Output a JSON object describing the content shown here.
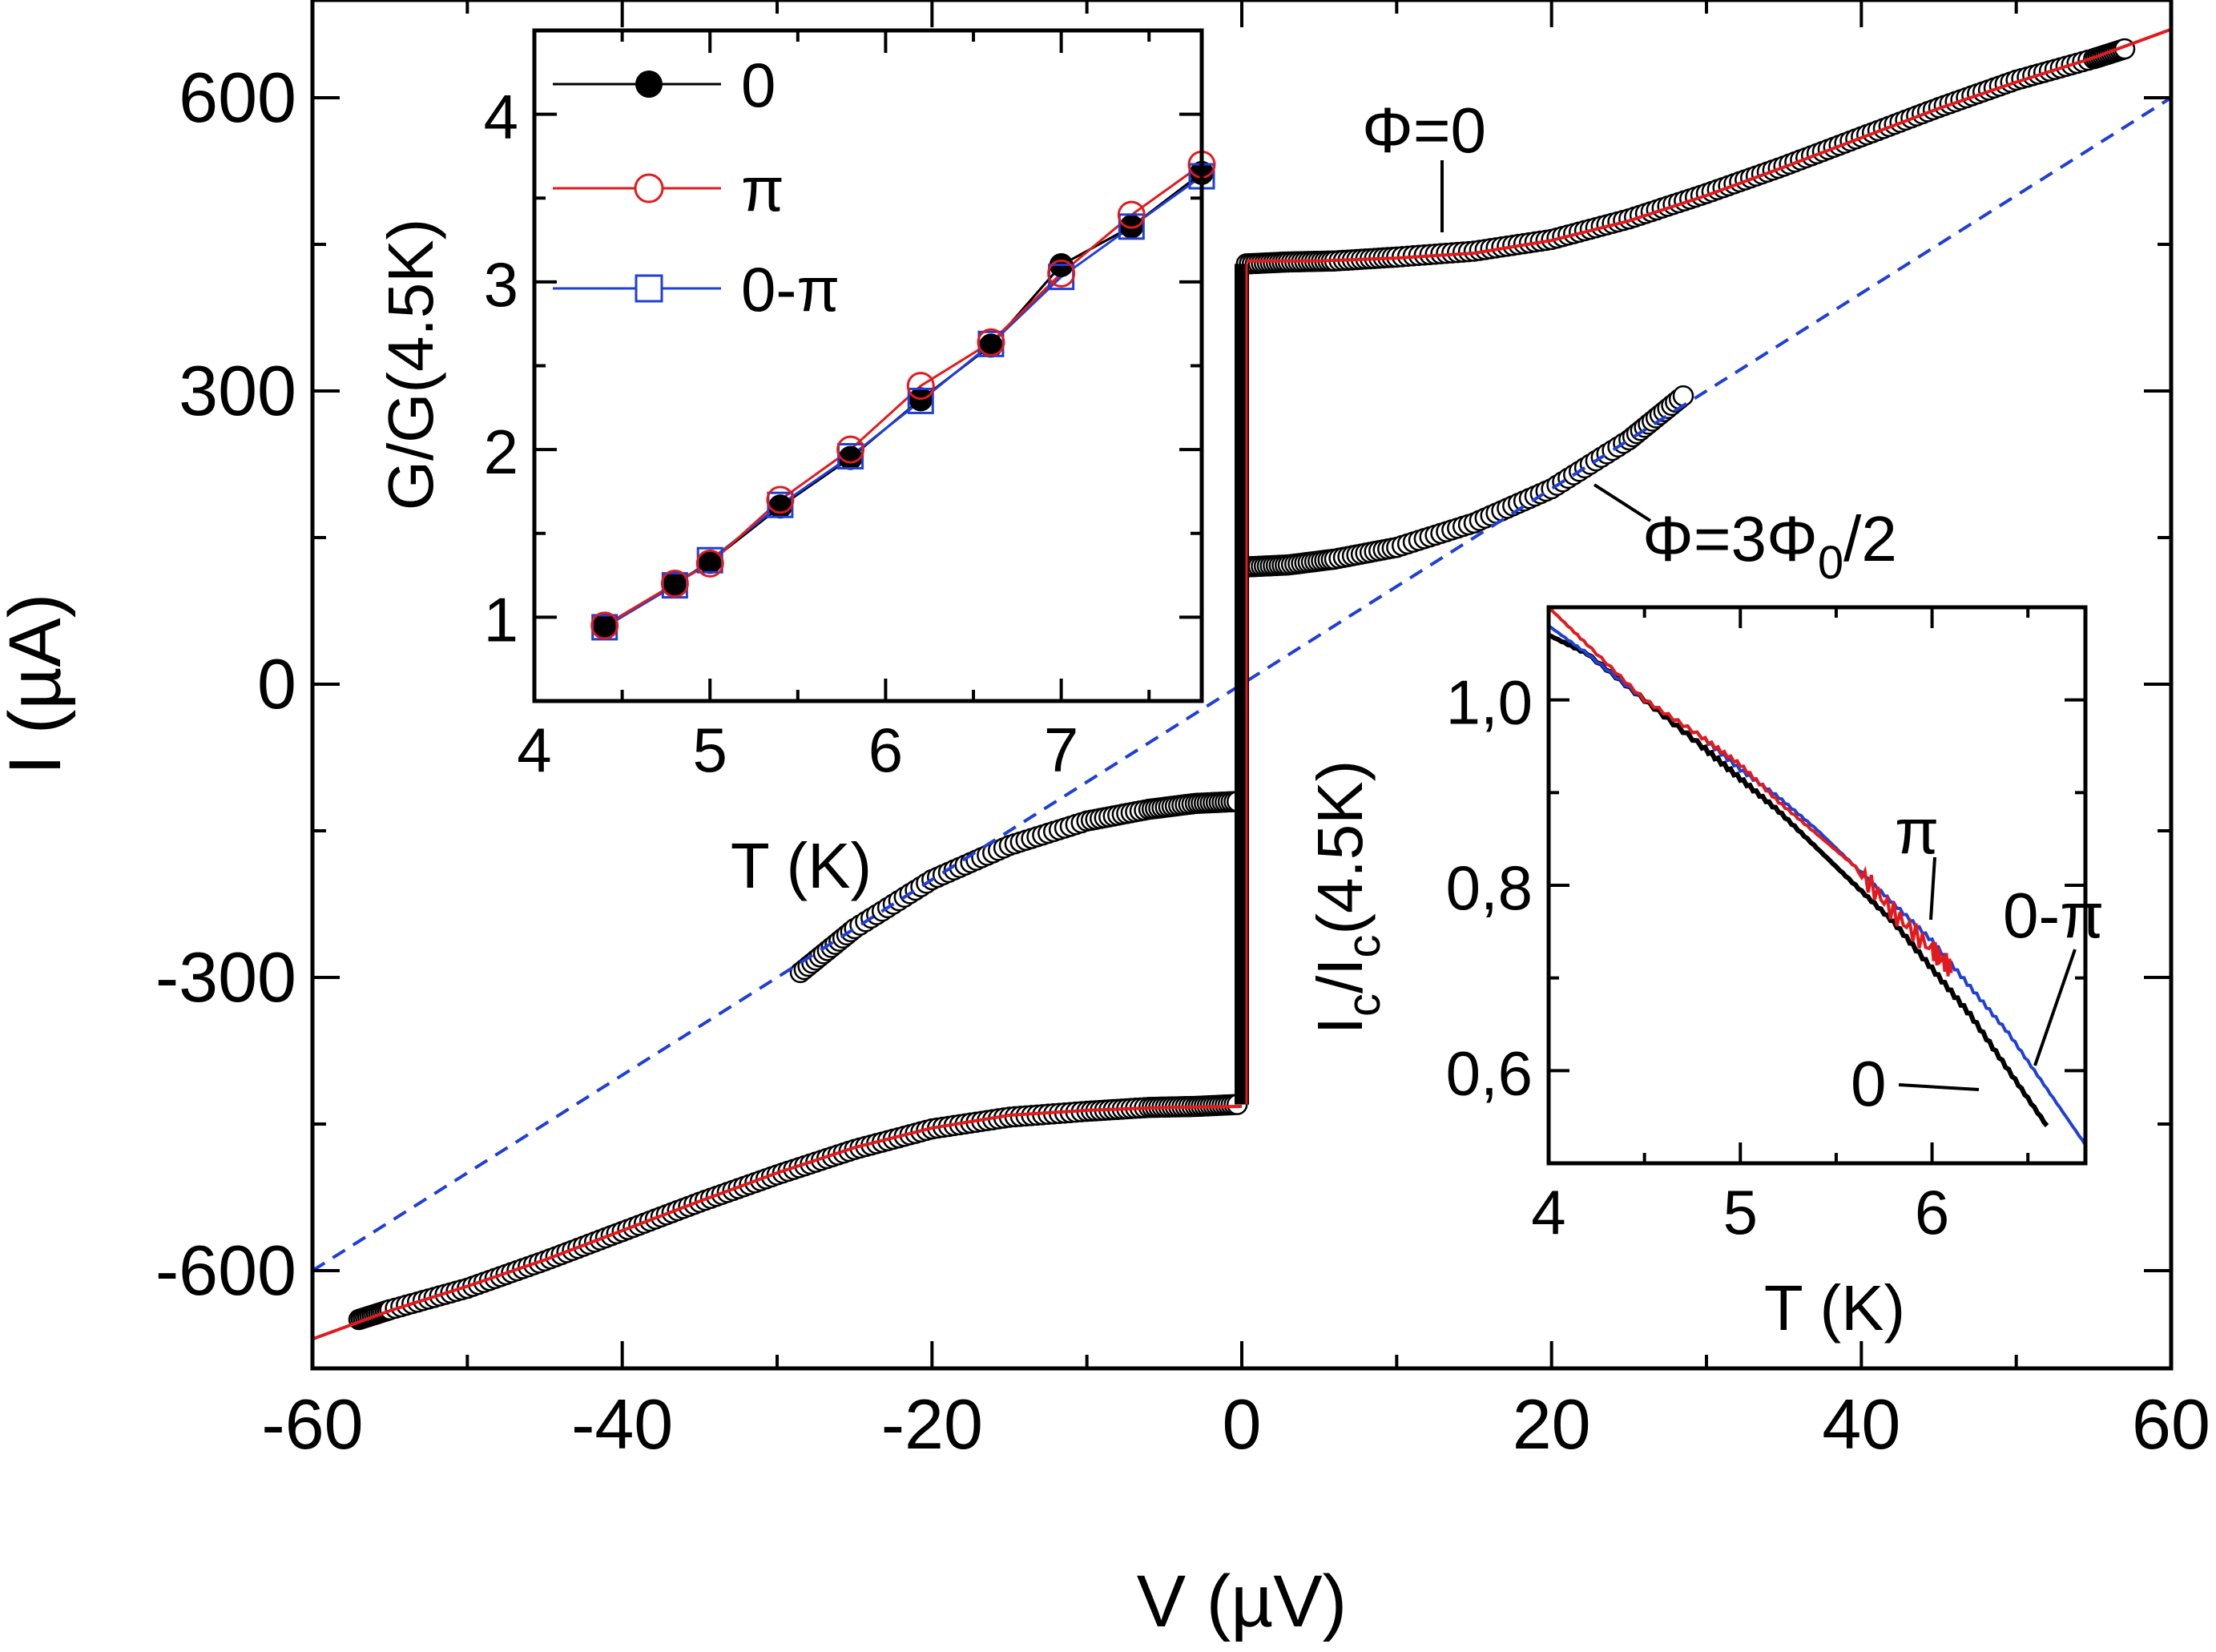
{
  "chart_data": [
    {
      "id": "main",
      "type": "scatter",
      "xlabel": "V (µV)",
      "ylabel": "I (µA)",
      "xlim": [
        -60,
        60
      ],
      "ylim": [
        -700,
        700
      ],
      "xticks": [
        -60,
        -40,
        -20,
        0,
        20,
        40,
        60
      ],
      "xtick_labels": [
        "-60",
        "-40",
        "-20",
        "0",
        "20",
        "40",
        "60"
      ],
      "yticks": [
        -600,
        -300,
        0,
        300,
        600
      ],
      "ytick_labels": [
        "-600",
        "-300",
        "0",
        "300",
        "600"
      ],
      "annotations": [
        {
          "label": "Φ=0",
          "target": "phi0_curve"
        },
        {
          "label": "Φ=3Φ0/2",
          "text_main": "Φ=3Φ",
          "text_sub": "0",
          "text_tail": "/2",
          "target": "phi32_curve"
        }
      ],
      "series": [
        {
          "name": "Φ=0 data",
          "marker": "open-circle",
          "color": "#000000",
          "branches": [
            {
              "x": [
                0.3,
                3,
                6,
                10,
                15,
                20,
                25,
                30,
                35,
                40,
                45,
                50,
                55,
                57
              ],
              "y": [
                430,
                432,
                433,
                437,
                443,
                455,
                476,
                502,
                530,
                560,
                590,
                618,
                640,
                650
              ]
            },
            {
              "x": [
                -57,
                -55,
                -50,
                -45,
                -40,
                -35,
                -30,
                -25,
                -20,
                -15,
                -10,
                -6,
                -3,
                -0.3
              ],
              "y": [
                -650,
                -640,
                -618,
                -590,
                -560,
                -530,
                -502,
                -476,
                -455,
                -443,
                -437,
                -433,
                -432,
                -430
              ]
            }
          ]
        },
        {
          "name": "Φ=0 fit",
          "line": "solid",
          "color": "#e31a1c",
          "points": {
            "x": [
              -60,
              -55,
              -50,
              -45,
              -40,
              -35,
              -30,
              -25,
              -20,
              -15,
              -10,
              -5,
              0,
              5,
              10,
              15,
              20,
              25,
              30,
              35,
              40,
              45,
              50,
              55,
              60
            ],
            "y": [
              -670,
              -641,
              -616,
              -589,
              -559,
              -529,
              -500,
              -474,
              -454,
              -441,
              -436,
              -433,
              -432,
              433,
              436,
              441,
              454,
              474,
              500,
              529,
              559,
              589,
              616,
              641,
              670
            ]
          }
        },
        {
          "name": "Φ=3Φ0/2 data",
          "marker": "open-circle",
          "color": "#000000",
          "branches": [
            {
              "x": [
                0.3,
                3,
                6,
                10,
                15,
                20,
                25,
                28.5
              ],
              "y": [
                120,
                122,
                128,
                140,
                165,
                200,
                250,
                295
              ]
            },
            {
              "x": [
                -28.5,
                -25,
                -20,
                -15,
                -10,
                -6,
                -3,
                -0.3
              ],
              "y": [
                -295,
                -250,
                -200,
                -165,
                -140,
                -128,
                -122,
                -120
              ]
            }
          ]
        },
        {
          "name": "Φ=3Φ0/2 fit",
          "line": "dashed",
          "color": "#1f3fd6",
          "points": {
            "x": [
              -60,
              60
            ],
            "y": [
              -600,
              600
            ]
          }
        },
        {
          "name": "supercurrent branch",
          "line": "solid-thick",
          "color": "#000000",
          "points": {
            "x": [
              0,
              0
            ],
            "y": [
              -430,
              430
            ]
          }
        }
      ]
    },
    {
      "id": "inset_top_left",
      "type": "line",
      "xlabel": "T (K)",
      "ylabel": "G/G(4.5K)",
      "xlim": [
        4,
        7.8
      ],
      "ylim": [
        0.5,
        4.5
      ],
      "xticks": [
        4,
        5,
        6,
        7
      ],
      "xtick_labels": [
        "4",
        "5",
        "6",
        "7"
      ],
      "yticks": [
        1,
        2,
        3,
        4
      ],
      "ytick_labels": [
        "1",
        "2",
        "3",
        "4"
      ],
      "legend": {
        "position": "top-left",
        "entries": [
          "0",
          "π",
          "0-π"
        ]
      },
      "series": [
        {
          "name": "0",
          "marker": "filled-circle",
          "color": "#000000",
          "x": [
            4.4,
            4.8,
            5.0,
            5.4,
            5.8,
            6.2,
            6.6,
            7.0,
            7.4,
            7.8
          ],
          "y": [
            0.95,
            1.2,
            1.33,
            1.66,
            1.95,
            2.3,
            2.62,
            3.1,
            3.33,
            3.65
          ]
        },
        {
          "name": "π",
          "marker": "open-circle",
          "color": "#e31a1c",
          "x": [
            4.4,
            4.8,
            5.0,
            5.4,
            5.8,
            6.2,
            6.6,
            7.0,
            7.4,
            7.8
          ],
          "y": [
            0.95,
            1.2,
            1.32,
            1.7,
            2.0,
            2.38,
            2.64,
            3.05,
            3.4,
            3.7
          ]
        },
        {
          "name": "0-π",
          "marker": "open-square",
          "color": "#1f3fd6",
          "x": [
            4.4,
            4.8,
            5.0,
            5.4,
            5.8,
            6.2,
            6.6,
            7.0,
            7.4,
            7.8
          ],
          "y": [
            0.94,
            1.19,
            1.34,
            1.67,
            1.96,
            2.29,
            2.63,
            3.03,
            3.33,
            3.63
          ]
        }
      ]
    },
    {
      "id": "inset_bottom_right",
      "type": "line",
      "xlabel": "T (K)",
      "ylabel": "I_c/I_c(4.5K)",
      "ylabel_parts": {
        "a": "I",
        "sub1": "c",
        "b": "/I",
        "sub2": "c",
        "c": "(4.5K)"
      },
      "xlim": [
        4,
        6.8
      ],
      "ylim": [
        0.5,
        1.1
      ],
      "xticks": [
        4,
        5,
        6
      ],
      "xtick_labels": [
        "4",
        "5",
        "6"
      ],
      "yticks": [
        0.6,
        0.8,
        1.0
      ],
      "ytick_labels": [
        "0,6",
        "0,8",
        "1,0"
      ],
      "annotations": [
        {
          "label": "π",
          "target": "π"
        },
        {
          "label": "0-π",
          "target": "0-π"
        },
        {
          "label": "0",
          "target": "0"
        }
      ],
      "series": [
        {
          "name": "0",
          "color": "#000000",
          "x": [
            4.0,
            4.2,
            4.5,
            4.8,
            5.0,
            5.2,
            5.4,
            5.6,
            5.8,
            6.0,
            6.2,
            6.4,
            6.6
          ],
          "y": [
            1.07,
            1.05,
            1.0,
            0.95,
            0.915,
            0.88,
            0.84,
            0.8,
            0.76,
            0.71,
            0.66,
            0.6,
            0.54
          ]
        },
        {
          "name": "π",
          "color": "#e31a1c",
          "x": [
            4.0,
            4.2,
            4.5,
            4.8,
            5.0,
            5.2,
            5.4,
            5.6,
            5.8,
            6.0,
            6.1
          ],
          "y": [
            1.1,
            1.06,
            1.0,
            0.96,
            0.93,
            0.89,
            0.855,
            0.82,
            0.77,
            0.73,
            0.71
          ]
        },
        {
          "name": "0-π",
          "color": "#1f3fd6",
          "x": [
            4.0,
            4.2,
            4.5,
            4.8,
            5.0,
            5.2,
            5.4,
            5.6,
            5.8,
            6.0,
            6.2,
            6.4,
            6.6,
            6.8
          ],
          "y": [
            1.08,
            1.05,
            1.0,
            0.96,
            0.925,
            0.895,
            0.86,
            0.82,
            0.78,
            0.74,
            0.69,
            0.64,
            0.58,
            0.52
          ]
        }
      ]
    }
  ]
}
